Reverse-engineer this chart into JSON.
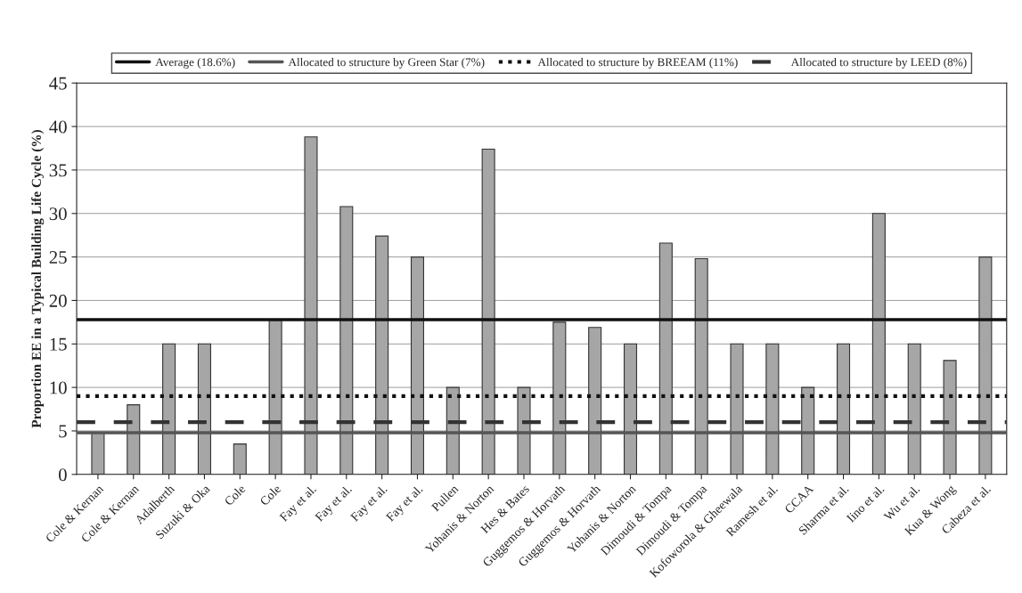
{
  "chart_data": {
    "type": "bar",
    "ylabel": "Proportion EE in a Typical Building Life Cycle (%)",
    "categories": [
      "Cole & Kernan",
      "Cole & Kernan",
      "Adalberth",
      "Suzuki & Oka",
      "Cole",
      "Cole",
      "Fay et al.",
      "Fay et al.",
      "Fay et al.",
      "Fay et al.",
      "Pullen",
      "Yohanis & Norton",
      "Hes & Bates",
      "Guggemos & Horvath",
      "Guggemos & Horvath",
      "Yohanis & Norton",
      "Dimoudi & Tompa",
      "Dimoudi & Tompa",
      "Kofoworola & Gheewala",
      "Ramesh et al.",
      "CCAA",
      "Sharma et al.",
      "Iino et al.",
      "Wu et al.",
      "Kua & Wong",
      "Cabeza et al."
    ],
    "values": [
      4.8,
      8,
      15,
      15,
      3.5,
      17.8,
      38.8,
      30.8,
      27.4,
      25,
      10,
      37.4,
      10,
      17.5,
      16.9,
      15,
      26.6,
      24.8,
      15,
      15,
      10,
      15,
      30,
      15,
      13.1,
      25
    ],
    "color": "#a6a6a6",
    "ylim": [
      0,
      45
    ],
    "yticks": [
      0,
      5,
      10,
      15,
      20,
      25,
      30,
      35,
      40,
      45
    ],
    "ref_lines": [
      {
        "axis": "y",
        "value": 17.8,
        "label": "Average (18.6%)",
        "color": "#111111",
        "line_style": "solid"
      },
      {
        "axis": "y",
        "value": 4.8,
        "label": "Allocated to structure by Green Star (7%)",
        "color": "#555555",
        "line_style": "solid"
      },
      {
        "axis": "y",
        "value": 9,
        "label": "Allocated to structure by BREEAM (11%)",
        "color": "#111111",
        "line_style": "dotted"
      },
      {
        "axis": "y",
        "value": 6,
        "label": "Allocated to structure by LEED (8%)",
        "color": "#333333",
        "line_style": "dashed"
      }
    ],
    "grid": "y",
    "legend": "top"
  }
}
